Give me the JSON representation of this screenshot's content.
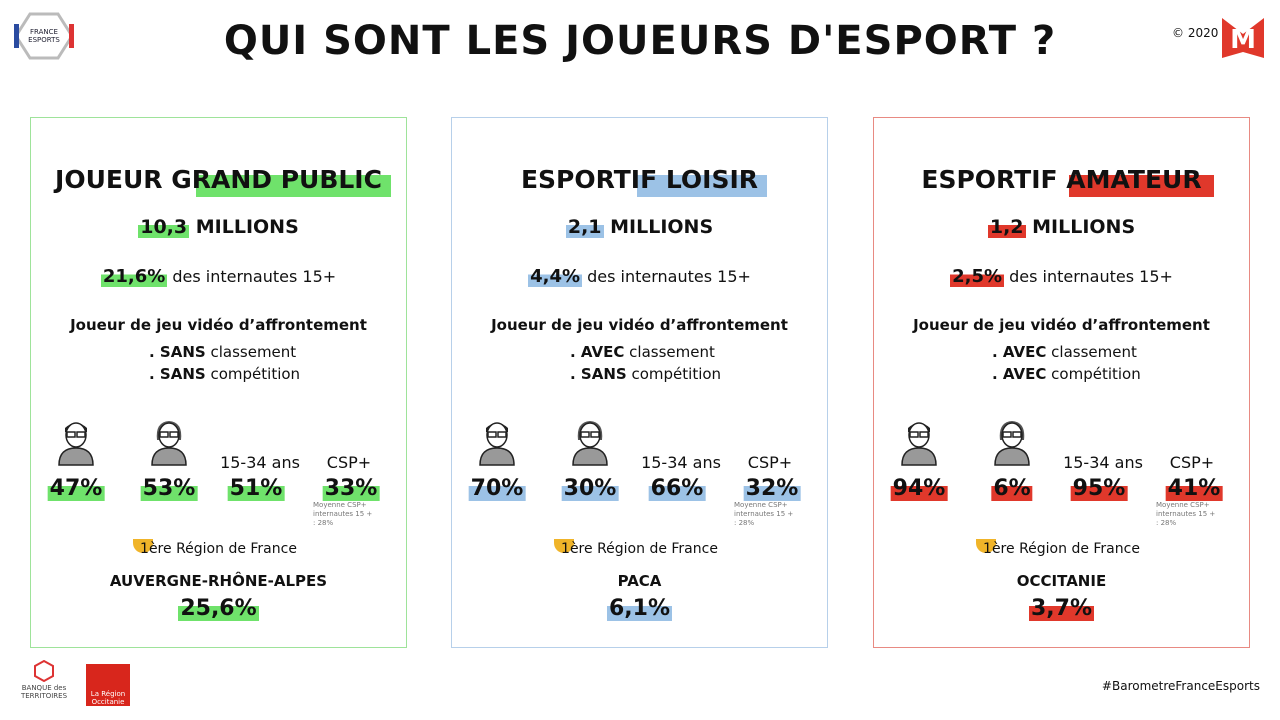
{
  "header": {
    "title": "QUI SONT LES JOUEURS D'ESPORT ?",
    "copyright": "© 2020",
    "logo": "FRANCE ESPORTS"
  },
  "cards": [
    {
      "title": "JOUEUR GRAND PUBLIC",
      "total": "10,3",
      "total_unit": "MILLIONS",
      "share": "21,6%",
      "share_suffix": "des internautes 15+",
      "profile": "Joueur de jeu vidéo d’affrontement",
      "lines": [
        {
          "bold": ". SANS",
          "text": "classement"
        },
        {
          "bold": ". SANS",
          "text": "compétition"
        }
      ],
      "stats": {
        "men": "47%",
        "women": "53%",
        "age_label": "15-34 ans",
        "age": "51%",
        "csp_label": "CSP+",
        "csp": "33%",
        "csp_note": "Moyenne CSP+ internautes 15 + : 28%"
      },
      "region_label": "1ère Région de France",
      "region": "AUVERGNE-RHÔNE-ALPES",
      "region_share": "25,6%"
    },
    {
      "title": "ESPORTIF LOISIR",
      "total": "2,1",
      "total_unit": "MILLIONS",
      "share": "4,4%",
      "share_suffix": "des internautes 15+",
      "profile": "Joueur de jeu vidéo d’affrontement",
      "lines": [
        {
          "bold": ". AVEC",
          "text": "classement"
        },
        {
          "bold": ". SANS",
          "text": "compétition"
        }
      ],
      "stats": {
        "men": "70%",
        "women": "30%",
        "age_label": "15-34 ans",
        "age": "66%",
        "csp_label": "CSP+",
        "csp": "32%",
        "csp_note": "Moyenne CSP+ internautes 15 + : 28%"
      },
      "region_label": "1ère Région de France",
      "region": "PACA",
      "region_share": "6,1%"
    },
    {
      "title": "ESPORTIF AMATEUR",
      "total": "1,2",
      "total_unit": "MILLIONS",
      "share": "2,5%",
      "share_suffix": "des internautes 15+",
      "profile": "Joueur de jeu vidéo d’affrontement",
      "lines": [
        {
          "bold": ". AVEC",
          "text": "classement"
        },
        {
          "bold": ". AVEC",
          "text": "compétition"
        }
      ],
      "stats": {
        "men": "94%",
        "women": "6%",
        "age_label": "15-34 ans",
        "age": "95%",
        "csp_label": "CSP+",
        "csp": "41%",
        "csp_note": "Moyenne CSP+ internautes 15 + : 28%"
      },
      "region_label": "1ère Région de France",
      "region": "OCCITANIE",
      "region_share": "3,7%"
    }
  ],
  "footer": {
    "hashtag": "#BarometreFranceEsports",
    "partner1": "BANQUE des TERRITOIRES",
    "partner2": "La Région Occitanie"
  }
}
